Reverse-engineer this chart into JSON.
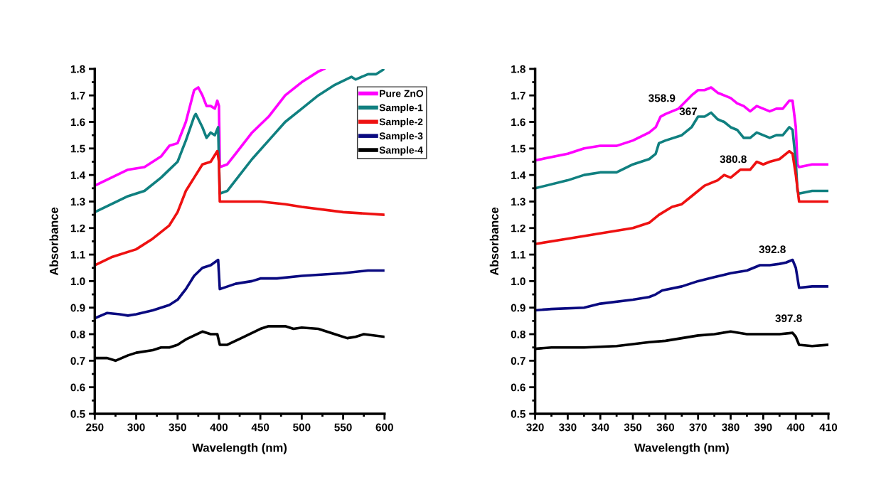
{
  "chart_data": [
    {
      "type": "line",
      "xlabel": "Wavelength (nm)",
      "ylabel": "Absorbance",
      "xlim": [
        250,
        600
      ],
      "ylim": [
        0.5,
        1.8
      ],
      "xticks": [
        250,
        300,
        350,
        400,
        450,
        500,
        550,
        600
      ],
      "yticks": [
        0.5,
        0.6,
        0.7,
        0.8,
        0.9,
        {
          "value": 1,
          "label": "1.0"
        },
        1.1,
        1.2,
        1.3,
        1.4,
        1.5,
        1.6,
        1.7,
        1.8
      ],
      "legend": "top right",
      "grid": false,
      "series": [
        {
          "name": "Pure ZnO",
          "color": "#ff00ff",
          "x": [
            250,
            290,
            310,
            330,
            340,
            350,
            360,
            370,
            375,
            380,
            385,
            390,
            395,
            398,
            400,
            401,
            410,
            420,
            440,
            460,
            480,
            500,
            520,
            527
          ],
          "values": [
            1.36,
            1.42,
            1.43,
            1.47,
            1.51,
            1.52,
            1.6,
            1.72,
            1.73,
            1.7,
            1.66,
            1.66,
            1.65,
            1.68,
            1.66,
            1.43,
            1.44,
            1.48,
            1.56,
            1.62,
            1.7,
            1.75,
            1.79,
            1.8
          ]
        },
        {
          "name": "Sample-1",
          "color": "#108080",
          "x": [
            250,
            270,
            290,
            310,
            330,
            340,
            350,
            360,
            370,
            372,
            380,
            385,
            390,
            395,
            399,
            400,
            401,
            410,
            420,
            440,
            460,
            480,
            500,
            520,
            540,
            560,
            565,
            580,
            590,
            600
          ],
          "values": [
            1.26,
            1.29,
            1.32,
            1.34,
            1.39,
            1.42,
            1.45,
            1.53,
            1.62,
            1.63,
            1.58,
            1.54,
            1.56,
            1.55,
            1.58,
            1.45,
            1.33,
            1.34,
            1.38,
            1.46,
            1.53,
            1.6,
            1.65,
            1.7,
            1.74,
            1.77,
            1.76,
            1.78,
            1.78,
            1.8
          ]
        },
        {
          "name": "Sample-2",
          "color": "#ee1111",
          "x": [
            250,
            270,
            300,
            320,
            340,
            350,
            360,
            370,
            380,
            390,
            398,
            400,
            401,
            420,
            450,
            480,
            500,
            550,
            600
          ],
          "values": [
            1.06,
            1.09,
            1.12,
            1.16,
            1.21,
            1.26,
            1.34,
            1.39,
            1.44,
            1.45,
            1.49,
            1.45,
            1.3,
            1.3,
            1.3,
            1.29,
            1.28,
            1.26,
            1.25
          ]
        },
        {
          "name": "Sample-3",
          "color": "#0a0a80",
          "x": [
            250,
            265,
            280,
            290,
            300,
            320,
            340,
            350,
            360,
            370,
            380,
            390,
            399,
            401,
            420,
            440,
            450,
            470,
            500,
            550,
            580,
            600
          ],
          "values": [
            0.86,
            0.88,
            0.875,
            0.87,
            0.875,
            0.89,
            0.91,
            0.93,
            0.97,
            1.02,
            1.05,
            1.06,
            1.08,
            0.97,
            0.99,
            1.0,
            1.01,
            1.01,
            1.02,
            1.03,
            1.04,
            1.04
          ]
        },
        {
          "name": "Sample-4",
          "color": "#000000",
          "x": [
            250,
            265,
            275,
            290,
            300,
            320,
            330,
            340,
            350,
            360,
            370,
            380,
            390,
            398,
            401,
            410,
            430,
            450,
            460,
            480,
            490,
            500,
            520,
            540,
            555,
            565,
            575,
            600
          ],
          "values": [
            0.71,
            0.71,
            0.7,
            0.72,
            0.73,
            0.74,
            0.75,
            0.75,
            0.76,
            0.78,
            0.795,
            0.81,
            0.8,
            0.8,
            0.76,
            0.76,
            0.79,
            0.82,
            0.83,
            0.83,
            0.82,
            0.825,
            0.82,
            0.8,
            0.785,
            0.79,
            0.8,
            0.79
          ]
        }
      ]
    },
    {
      "type": "line",
      "xlabel": "Wavelength (nm)",
      "ylabel": "Absorbance",
      "xlim": [
        320,
        410
      ],
      "ylim": [
        0.5,
        1.8
      ],
      "xticks": [
        320,
        330,
        340,
        350,
        360,
        370,
        380,
        390,
        400,
        410
      ],
      "yticks": [
        0.5,
        0.6,
        0.7,
        0.8,
        0.9,
        {
          "value": 1,
          "label": "1.0"
        },
        1.1,
        1.2,
        1.3,
        1.4,
        1.5,
        1.6,
        1.7,
        1.8
      ],
      "grid": false,
      "annotations": [
        {
          "text": "358.9",
          "x": 358.9,
          "y": 1.63
        },
        {
          "text": "367",
          "x": 367,
          "y": 1.58
        },
        {
          "text": "380.8",
          "x": 380.8,
          "y": 1.4
        },
        {
          "text": "392.8",
          "x": 392.8,
          "y": 1.06
        },
        {
          "text": "397.8",
          "x": 397.8,
          "y": 0.8
        }
      ],
      "series": [
        {
          "color": "#ff00ff",
          "x": [
            320,
            330,
            335,
            340,
            345,
            350,
            355,
            357,
            358.5,
            360,
            364,
            368,
            370,
            372,
            374,
            376,
            378,
            380,
            382,
            384,
            386,
            388,
            390,
            392,
            394,
            396,
            398,
            399,
            400,
            400.5,
            401,
            405,
            410
          ],
          "values": [
            1.455,
            1.48,
            1.5,
            1.51,
            1.51,
            1.53,
            1.56,
            1.58,
            1.62,
            1.63,
            1.65,
            1.7,
            1.72,
            1.72,
            1.73,
            1.71,
            1.7,
            1.69,
            1.67,
            1.66,
            1.64,
            1.66,
            1.65,
            1.64,
            1.65,
            1.65,
            1.68,
            1.68,
            1.58,
            1.44,
            1.43,
            1.44,
            1.44
          ]
        },
        {
          "color": "#108080",
          "x": [
            320,
            330,
            335,
            340,
            345,
            350,
            355,
            357,
            358,
            360,
            365,
            368,
            370,
            372,
            374,
            376,
            378,
            380,
            382,
            384,
            386,
            388,
            390,
            392,
            394,
            396,
            398,
            399,
            400,
            400.5,
            401,
            405,
            410
          ],
          "values": [
            1.35,
            1.38,
            1.4,
            1.41,
            1.41,
            1.44,
            1.46,
            1.48,
            1.52,
            1.53,
            1.55,
            1.58,
            1.62,
            1.62,
            1.635,
            1.61,
            1.6,
            1.58,
            1.57,
            1.54,
            1.54,
            1.56,
            1.55,
            1.54,
            1.55,
            1.55,
            1.58,
            1.57,
            1.45,
            1.34,
            1.33,
            1.34,
            1.34
          ]
        },
        {
          "color": "#ee1111",
          "x": [
            320,
            330,
            340,
            350,
            355,
            358,
            362,
            365,
            368,
            372,
            376,
            378,
            380,
            383,
            386,
            388,
            390,
            392,
            395,
            398,
            399,
            400,
            401,
            405,
            410
          ],
          "values": [
            1.14,
            1.16,
            1.18,
            1.2,
            1.22,
            1.25,
            1.28,
            1.29,
            1.32,
            1.36,
            1.38,
            1.4,
            1.39,
            1.42,
            1.42,
            1.45,
            1.44,
            1.45,
            1.46,
            1.49,
            1.48,
            1.4,
            1.3,
            1.3,
            1.3
          ]
        },
        {
          "color": "#0a0a80",
          "x": [
            320,
            325,
            335,
            340,
            350,
            355,
            357,
            359,
            365,
            370,
            375,
            380,
            385,
            387,
            389,
            392,
            395,
            397,
            399,
            400,
            401,
            405,
            410
          ],
          "values": [
            0.89,
            0.895,
            0.9,
            0.915,
            0.93,
            0.94,
            0.95,
            0.965,
            0.98,
            1.0,
            1.015,
            1.03,
            1.04,
            1.05,
            1.06,
            1.06,
            1.065,
            1.07,
            1.08,
            1.05,
            0.975,
            0.98,
            0.98
          ]
        },
        {
          "color": "#000000",
          "x": [
            320,
            325,
            335,
            345,
            355,
            360,
            365,
            370,
            375,
            380,
            385,
            390,
            395,
            399,
            400,
            401,
            405,
            410
          ],
          "values": [
            0.745,
            0.75,
            0.75,
            0.755,
            0.77,
            0.775,
            0.785,
            0.795,
            0.8,
            0.81,
            0.8,
            0.8,
            0.8,
            0.805,
            0.79,
            0.76,
            0.755,
            0.76
          ]
        }
      ]
    }
  ]
}
